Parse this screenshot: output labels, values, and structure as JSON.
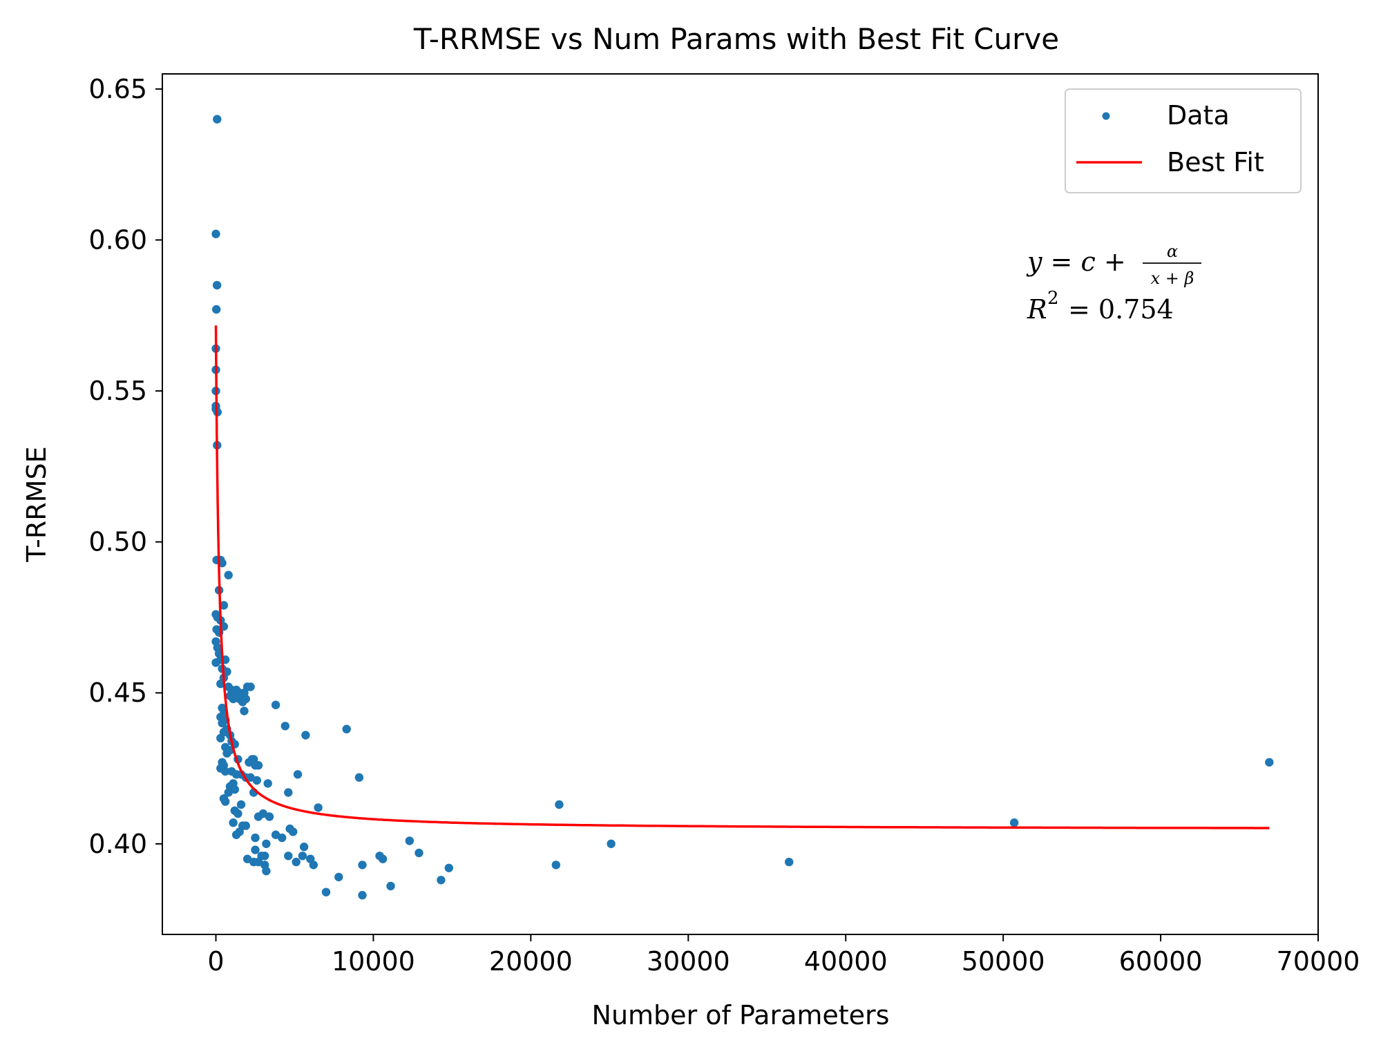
{
  "chart_data": {
    "type": "scatter",
    "title": "T-RRMSE vs Num Params with Best Fit Curve",
    "xlabel": "Number of Parameters",
    "ylabel": "T-RRMSE",
    "xlim": [
      -3400,
      70000
    ],
    "ylim": [
      0.37,
      0.655
    ],
    "xticks": [
      0,
      10000,
      20000,
      30000,
      40000,
      50000,
      60000,
      70000
    ],
    "xtick_labels": [
      "0",
      "10000",
      "20000",
      "30000",
      "40000",
      "50000",
      "60000",
      "70000"
    ],
    "yticks": [
      0.4,
      0.45,
      0.5,
      0.55,
      0.6,
      0.65
    ],
    "ytick_labels": [
      "0.40",
      "0.45",
      "0.50",
      "0.55",
      "0.60",
      "0.65"
    ],
    "grid": false,
    "legend_position": "top-right",
    "annotation": {
      "formula_lhs": "y = c +",
      "formula_num": "α",
      "formula_den": "x + β",
      "r2_lhs": "R",
      "r2_sup": "2",
      "r2_rhs": "= 0.754"
    },
    "series": [
      {
        "name": "Data",
        "kind": "scatter",
        "color": "#1f77b4",
        "points": [
          [
            80,
            0.64
          ],
          [
            0,
            0.602
          ],
          [
            70,
            0.585
          ],
          [
            30,
            0.577
          ],
          [
            0,
            0.564
          ],
          [
            0,
            0.557
          ],
          [
            0,
            0.55
          ],
          [
            0,
            0.545
          ],
          [
            0,
            0.544
          ],
          [
            100,
            0.543
          ],
          [
            80,
            0.532
          ],
          [
            50,
            0.494
          ],
          [
            300,
            0.494
          ],
          [
            400,
            0.493
          ],
          [
            800,
            0.489
          ],
          [
            200,
            0.484
          ],
          [
            500,
            0.479
          ],
          [
            0,
            0.476
          ],
          [
            100,
            0.475
          ],
          [
            300,
            0.474
          ],
          [
            50,
            0.471
          ],
          [
            200,
            0.47
          ],
          [
            500,
            0.472
          ],
          [
            0,
            0.467
          ],
          [
            100,
            0.465
          ],
          [
            200,
            0.463
          ],
          [
            300,
            0.461
          ],
          [
            600,
            0.461
          ],
          [
            0,
            0.46
          ],
          [
            400,
            0.458
          ],
          [
            700,
            0.457
          ],
          [
            500,
            0.455
          ],
          [
            300,
            0.453
          ],
          [
            800,
            0.452
          ],
          [
            1000,
            0.451
          ],
          [
            1300,
            0.451
          ],
          [
            1500,
            0.45
          ],
          [
            1200,
            0.449
          ],
          [
            1800,
            0.45
          ],
          [
            2000,
            0.452
          ],
          [
            2200,
            0.452
          ],
          [
            900,
            0.449
          ],
          [
            1100,
            0.448
          ],
          [
            1500,
            0.448
          ],
          [
            1700,
            0.447
          ],
          [
            1900,
            0.448
          ],
          [
            1800,
            0.444
          ],
          [
            400,
            0.445
          ],
          [
            500,
            0.443
          ],
          [
            300,
            0.442
          ],
          [
            600,
            0.441
          ],
          [
            400,
            0.44
          ],
          [
            700,
            0.438
          ],
          [
            500,
            0.437
          ],
          [
            300,
            0.435
          ],
          [
            900,
            0.436
          ],
          [
            1000,
            0.434
          ],
          [
            1200,
            0.433
          ],
          [
            600,
            0.432
          ],
          [
            700,
            0.43
          ],
          [
            900,
            0.431
          ],
          [
            1400,
            0.428
          ],
          [
            2300,
            0.428
          ],
          [
            2400,
            0.428
          ],
          [
            2100,
            0.427
          ],
          [
            2500,
            0.426
          ],
          [
            2700,
            0.426
          ],
          [
            400,
            0.427
          ],
          [
            500,
            0.426
          ],
          [
            600,
            0.424
          ],
          [
            300,
            0.425
          ],
          [
            1000,
            0.424
          ],
          [
            1300,
            0.423
          ],
          [
            1600,
            0.423
          ],
          [
            1900,
            0.422
          ],
          [
            2200,
            0.422
          ],
          [
            2600,
            0.421
          ],
          [
            3300,
            0.42
          ],
          [
            1100,
            0.42
          ],
          [
            900,
            0.419
          ],
          [
            1200,
            0.418
          ],
          [
            800,
            0.417
          ],
          [
            2400,
            0.417
          ],
          [
            1600,
            0.413
          ],
          [
            500,
            0.415
          ],
          [
            600,
            0.414
          ],
          [
            1200,
            0.411
          ],
          [
            1400,
            0.41
          ],
          [
            2700,
            0.409
          ],
          [
            3000,
            0.41
          ],
          [
            3400,
            0.409
          ],
          [
            1100,
            0.407
          ],
          [
            1700,
            0.406
          ],
          [
            1900,
            0.406
          ],
          [
            1300,
            0.403
          ],
          [
            1500,
            0.404
          ],
          [
            3800,
            0.403
          ],
          [
            4200,
            0.402
          ],
          [
            4700,
            0.405
          ],
          [
            4900,
            0.404
          ],
          [
            2500,
            0.402
          ],
          [
            3200,
            0.4
          ],
          [
            2500,
            0.398
          ],
          [
            2900,
            0.396
          ],
          [
            3100,
            0.396
          ],
          [
            2000,
            0.395
          ],
          [
            2400,
            0.394
          ],
          [
            2700,
            0.394
          ],
          [
            3100,
            0.393
          ],
          [
            3200,
            0.391
          ],
          [
            4600,
            0.396
          ],
          [
            5100,
            0.394
          ],
          [
            5500,
            0.396
          ],
          [
            5600,
            0.399
          ],
          [
            6000,
            0.395
          ],
          [
            6200,
            0.393
          ],
          [
            4600,
            0.417
          ],
          [
            5200,
            0.423
          ],
          [
            6500,
            0.412
          ],
          [
            3800,
            0.446
          ],
          [
            4400,
            0.439
          ],
          [
            5700,
            0.436
          ],
          [
            8300,
            0.438
          ],
          [
            9100,
            0.422
          ],
          [
            7000,
            0.384
          ],
          [
            7800,
            0.389
          ],
          [
            9300,
            0.383
          ],
          [
            9300,
            0.393
          ],
          [
            10400,
            0.396
          ],
          [
            10600,
            0.395
          ],
          [
            11100,
            0.386
          ],
          [
            12300,
            0.401
          ],
          [
            12900,
            0.397
          ],
          [
            14300,
            0.388
          ],
          [
            14800,
            0.392
          ],
          [
            21600,
            0.393
          ],
          [
            21800,
            0.413
          ],
          [
            25100,
            0.4
          ],
          [
            36400,
            0.394
          ],
          [
            50700,
            0.407
          ],
          [
            66900,
            0.427
          ]
        ]
      },
      {
        "name": "Best Fit",
        "kind": "line",
        "color": "#ff0000",
        "x_range": [
          0,
          66900
        ],
        "params": {
          "c": 0.4047,
          "alpha": 35.4,
          "beta": 212
        }
      }
    ]
  }
}
